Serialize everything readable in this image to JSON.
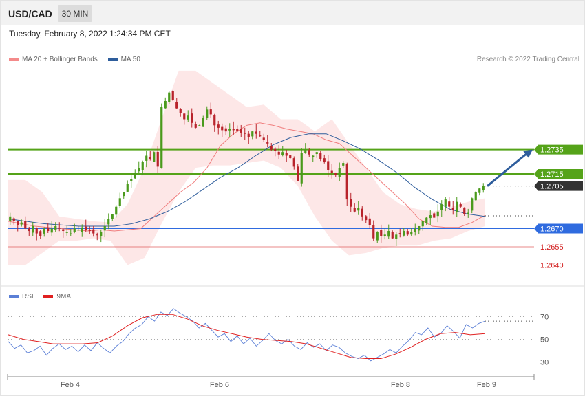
{
  "header": {
    "symbol": "USD/CAD",
    "timeframe": "30 MIN"
  },
  "datetime": "Tuesday, February 8, 2022 1:24:34 PM CET",
  "legend": [
    {
      "label": "MA 20 + Bollinger Bands",
      "color": "#f48a8a"
    },
    {
      "label": "MA 50",
      "color": "#2e5d9c"
    }
  ],
  "credit": "Research © 2022 Trading Central",
  "rsi_legend": [
    {
      "label": "RSI",
      "color": "#5b7fd6"
    },
    {
      "label": "9MA",
      "color": "#e02020"
    }
  ],
  "colors": {
    "up": "#4a9a1c",
    "down": "#b8232b",
    "resistance": "#55a319",
    "pivot": "#2f6bdf",
    "support": "#e06060",
    "current": "#333333",
    "arrow": "#2e5d9c"
  },
  "chart_data": [
    {
      "type": "candlestick",
      "title": "USD/CAD",
      "x_ticks": [
        "Feb 4",
        "Feb 6",
        "Feb 8",
        "Feb 9"
      ],
      "y_range": [
        1.2625,
        1.2805
      ],
      "levels": [
        {
          "value": 1.2735,
          "label": "1.2735",
          "kind": "resistance"
        },
        {
          "value": 1.2715,
          "label": "1.2715",
          "kind": "resistance"
        },
        {
          "value": 1.2705,
          "label": "1.2705",
          "kind": "current"
        },
        {
          "value": 1.267,
          "label": "1.2670",
          "kind": "pivot"
        },
        {
          "value": 1.2655,
          "label": "1.2655",
          "kind": "support"
        },
        {
          "value": 1.264,
          "label": "1.2640",
          "kind": "support"
        }
      ],
      "close_path": [
        1.268,
        1.2676,
        1.2673,
        1.2675,
        1.267,
        1.2668,
        1.2672,
        1.2666,
        1.2664,
        1.267,
        1.2668,
        1.267,
        1.2672,
        1.267,
        1.2668,
        1.2667,
        1.2666,
        1.267,
        1.2669,
        1.2671,
        1.2669,
        1.2668,
        1.2666,
        1.2665,
        1.2667,
        1.2672,
        1.2678,
        1.2682,
        1.2688,
        1.2695,
        1.27,
        1.2707,
        1.2711,
        1.2716,
        1.272,
        1.2725,
        1.273,
        1.2727,
        1.2733,
        1.2721,
        1.277,
        1.2775,
        1.2782,
        1.2776,
        1.2769,
        1.2765,
        1.276,
        1.2763,
        1.2757,
        1.2753,
        1.2755,
        1.2761,
        1.2768,
        1.2764,
        1.2755,
        1.2753,
        1.2751,
        1.275,
        1.2752,
        1.2751,
        1.275,
        1.2749,
        1.2748,
        1.2745,
        1.275,
        1.2748,
        1.2746,
        1.2743,
        1.274,
        1.2735,
        1.2734,
        1.2731,
        1.2733,
        1.273,
        1.2728,
        1.2721,
        1.2709,
        1.2732,
        1.2735,
        1.2731,
        1.273,
        1.2733,
        1.2727,
        1.2725,
        1.2718,
        1.2716,
        1.2714,
        1.272,
        1.2724,
        1.2694,
        1.2688,
        1.2684,
        1.2687,
        1.268,
        1.2677,
        1.2673,
        1.2662,
        1.2667,
        1.2664,
        1.2665,
        1.2668,
        1.2662,
        1.2665,
        1.2666,
        1.2668,
        1.2665,
        1.2667,
        1.267,
        1.2672,
        1.2676,
        1.2679,
        1.2681,
        1.2679,
        1.2684,
        1.269,
        1.2694,
        1.2688,
        1.2685,
        1.2692,
        1.2688,
        1.2682,
        1.2683,
        1.2695,
        1.27,
        1.2703,
        1.2705
      ],
      "ma20_path": [
        1.2676,
        1.2674,
        1.2672,
        1.2671,
        1.267,
        1.2669,
        1.2668,
        1.2669,
        1.2668,
        1.2669,
        1.267,
        1.268,
        1.269,
        1.27,
        1.2708,
        1.272,
        1.2738,
        1.2748,
        1.2755,
        1.2757,
        1.2755,
        1.2752,
        1.275,
        1.2748,
        1.2743,
        1.274,
        1.273,
        1.272,
        1.271,
        1.27,
        1.269,
        1.2678,
        1.2672,
        1.2671,
        1.2671,
        1.2675,
        1.2681
      ],
      "ma50_path": [
        1.2678,
        1.2676,
        1.2674,
        1.2673,
        1.2672,
        1.2672,
        1.2672,
        1.2674,
        1.2678,
        1.2684,
        1.2692,
        1.2702,
        1.2712,
        1.272,
        1.273,
        1.2739,
        1.2745,
        1.2748,
        1.2748,
        1.2742,
        1.2735,
        1.2726,
        1.2716,
        1.2704,
        1.2694,
        1.2686,
        1.2682,
        1.268
      ],
      "bb_upper_path": [
        1.271,
        1.271,
        1.27,
        1.268,
        1.2678,
        1.2676,
        1.2675,
        1.269,
        1.272,
        1.276,
        1.28,
        1.28,
        1.279,
        1.278,
        1.277,
        1.2772,
        1.276,
        1.276,
        1.275,
        1.276,
        1.274,
        1.272,
        1.27,
        1.269,
        1.2686,
        1.2684,
        1.2688,
        1.2692,
        1.2695
      ],
      "bb_lower_path": [
        1.264,
        1.264,
        1.265,
        1.266,
        1.266,
        1.2662,
        1.266,
        1.264,
        1.2646,
        1.2674,
        1.27,
        1.272,
        1.2722,
        1.2722,
        1.2724,
        1.2726,
        1.272,
        1.2705,
        1.268,
        1.266,
        1.2648,
        1.265,
        1.2654,
        1.2656,
        1.2656,
        1.266,
        1.2662,
        1.2668,
        1.2672
      ],
      "forecast": {
        "from": 1.2705,
        "to": 1.2735
      }
    },
    {
      "type": "line",
      "title": "RSI",
      "y_range": [
        20,
        80
      ],
      "y_ticks": [
        "70",
        "50",
        "30"
      ],
      "levels": [
        70,
        50,
        30
      ],
      "series": [
        {
          "name": "RSI",
          "values": [
            48,
            42,
            45,
            38,
            40,
            44,
            36,
            42,
            46,
            41,
            44,
            39,
            45,
            40,
            47,
            42,
            38,
            44,
            48,
            55,
            60,
            63,
            70,
            66,
            74,
            71,
            77,
            73,
            70,
            66,
            60,
            64,
            58,
            52,
            55,
            48,
            53,
            46,
            51,
            44,
            49,
            55,
            49,
            46,
            50,
            44,
            41,
            47,
            43,
            46,
            40,
            45,
            43,
            38,
            35,
            33,
            36,
            31,
            34,
            37,
            41,
            38,
            44,
            49,
            56,
            54,
            60,
            52,
            55,
            62,
            57,
            51,
            63,
            60,
            64,
            66
          ]
        },
        {
          "name": "9MA",
          "values": [
            54,
            50,
            48,
            46,
            46,
            46,
            47,
            53,
            62,
            69,
            72,
            72,
            68,
            62,
            58,
            55,
            52,
            50,
            49,
            48,
            46,
            42,
            38,
            34,
            33,
            33,
            37,
            43,
            50,
            55,
            56,
            54,
            55
          ]
        }
      ]
    }
  ]
}
